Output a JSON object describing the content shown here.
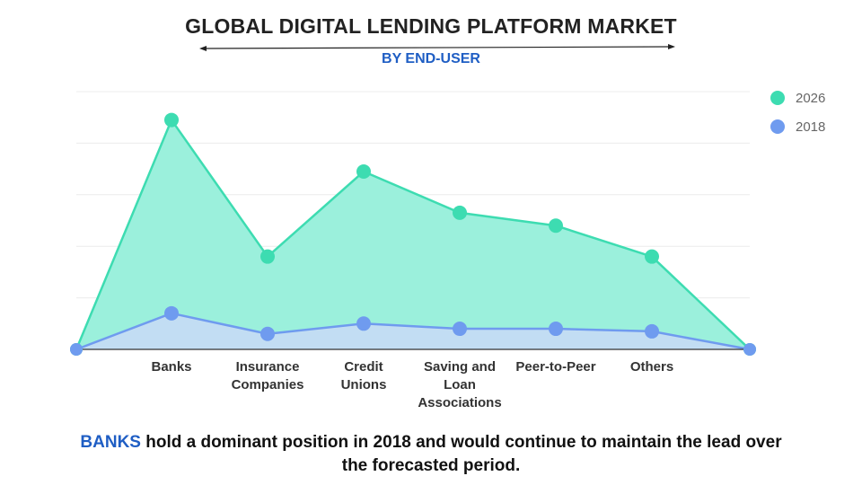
{
  "title": "GLOBAL DIGITAL LENDING PLATFORM MARKET",
  "subtitle": "BY END-USER",
  "takeaway": {
    "highlight": "BANKS",
    "rest": " hold a dominant position in 2018 and would continue to maintain the lead over the forecasted period."
  },
  "colors": {
    "series_2026": "#3ddcb1",
    "series_2026_fill": "#9bf0dc",
    "series_2018": "#6f9bef",
    "series_2018_fill": "#c9d9f7",
    "highlight": "#1f5ec4"
  },
  "chart_data": {
    "type": "area",
    "title": "GLOBAL DIGITAL LENDING PLATFORM MARKET",
    "subtitle": "BY END-USER",
    "categories": [
      "Banks",
      "Insurance Companies",
      "Credit Unions",
      "Saving and Loan Associations",
      "Peer-to-Peer",
      "Others"
    ],
    "series": [
      {
        "name": "2026",
        "values": [
          89,
          36,
          69,
          53,
          48,
          36
        ]
      },
      {
        "name": "2018",
        "values": [
          14,
          6,
          10,
          8,
          8,
          7
        ]
      }
    ],
    "ylim": [
      0,
      100
    ],
    "y_axis_labels": false,
    "grid": true,
    "legend": "top-right"
  }
}
